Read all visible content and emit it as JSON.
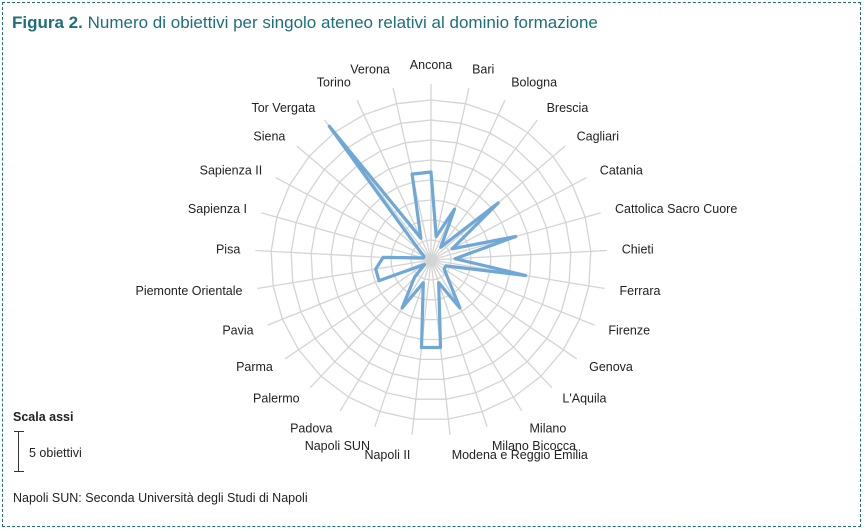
{
  "title": {
    "figure": "Figura 2.",
    "text": "Numero di obiettivi per singolo ateneo relativi al dominio formazione"
  },
  "scale": {
    "label": "Scala assi",
    "unit_text": "5 obiettivi",
    "unit_value": 5
  },
  "footnote": "Napoli SUN: Seconda Università degli Studi di Napoli",
  "colors": {
    "series": "#6fa8d6",
    "grid": "#d4d4d4",
    "title": "#1d6f7a"
  },
  "chart_data": {
    "type": "radar",
    "categories": [
      "Ancona",
      "Bari",
      "Bologna",
      "Brescia",
      "Cagliari",
      "Catania",
      "Cattolica Sacro Cuore",
      "Chieti",
      "Ferrara",
      "Firenze",
      "Genova",
      "L'Aquila",
      "Milano",
      "Milano Bicocca",
      "Modena e Reggio Emilia",
      "Napoli II",
      "Napoli SUN",
      "Padova",
      "Palermo",
      "Parma",
      "Pavia",
      "Piemonte Orientale",
      "Pisa",
      "Sapienza I",
      "Sapienza II",
      "Siena",
      "Tor Vergata",
      "Torino",
      "Verona"
    ],
    "values": [
      11,
      3,
      7,
      2,
      11,
      3,
      11,
      3,
      12,
      2,
      2,
      3,
      7,
      3,
      11,
      11,
      3,
      7,
      3,
      1,
      7,
      7,
      6,
      1,
      1,
      2,
      21,
      3,
      11
    ],
    "rlim": [
      0,
      22
    ],
    "ring_step": 2.5,
    "grid": true,
    "legend": "none"
  }
}
